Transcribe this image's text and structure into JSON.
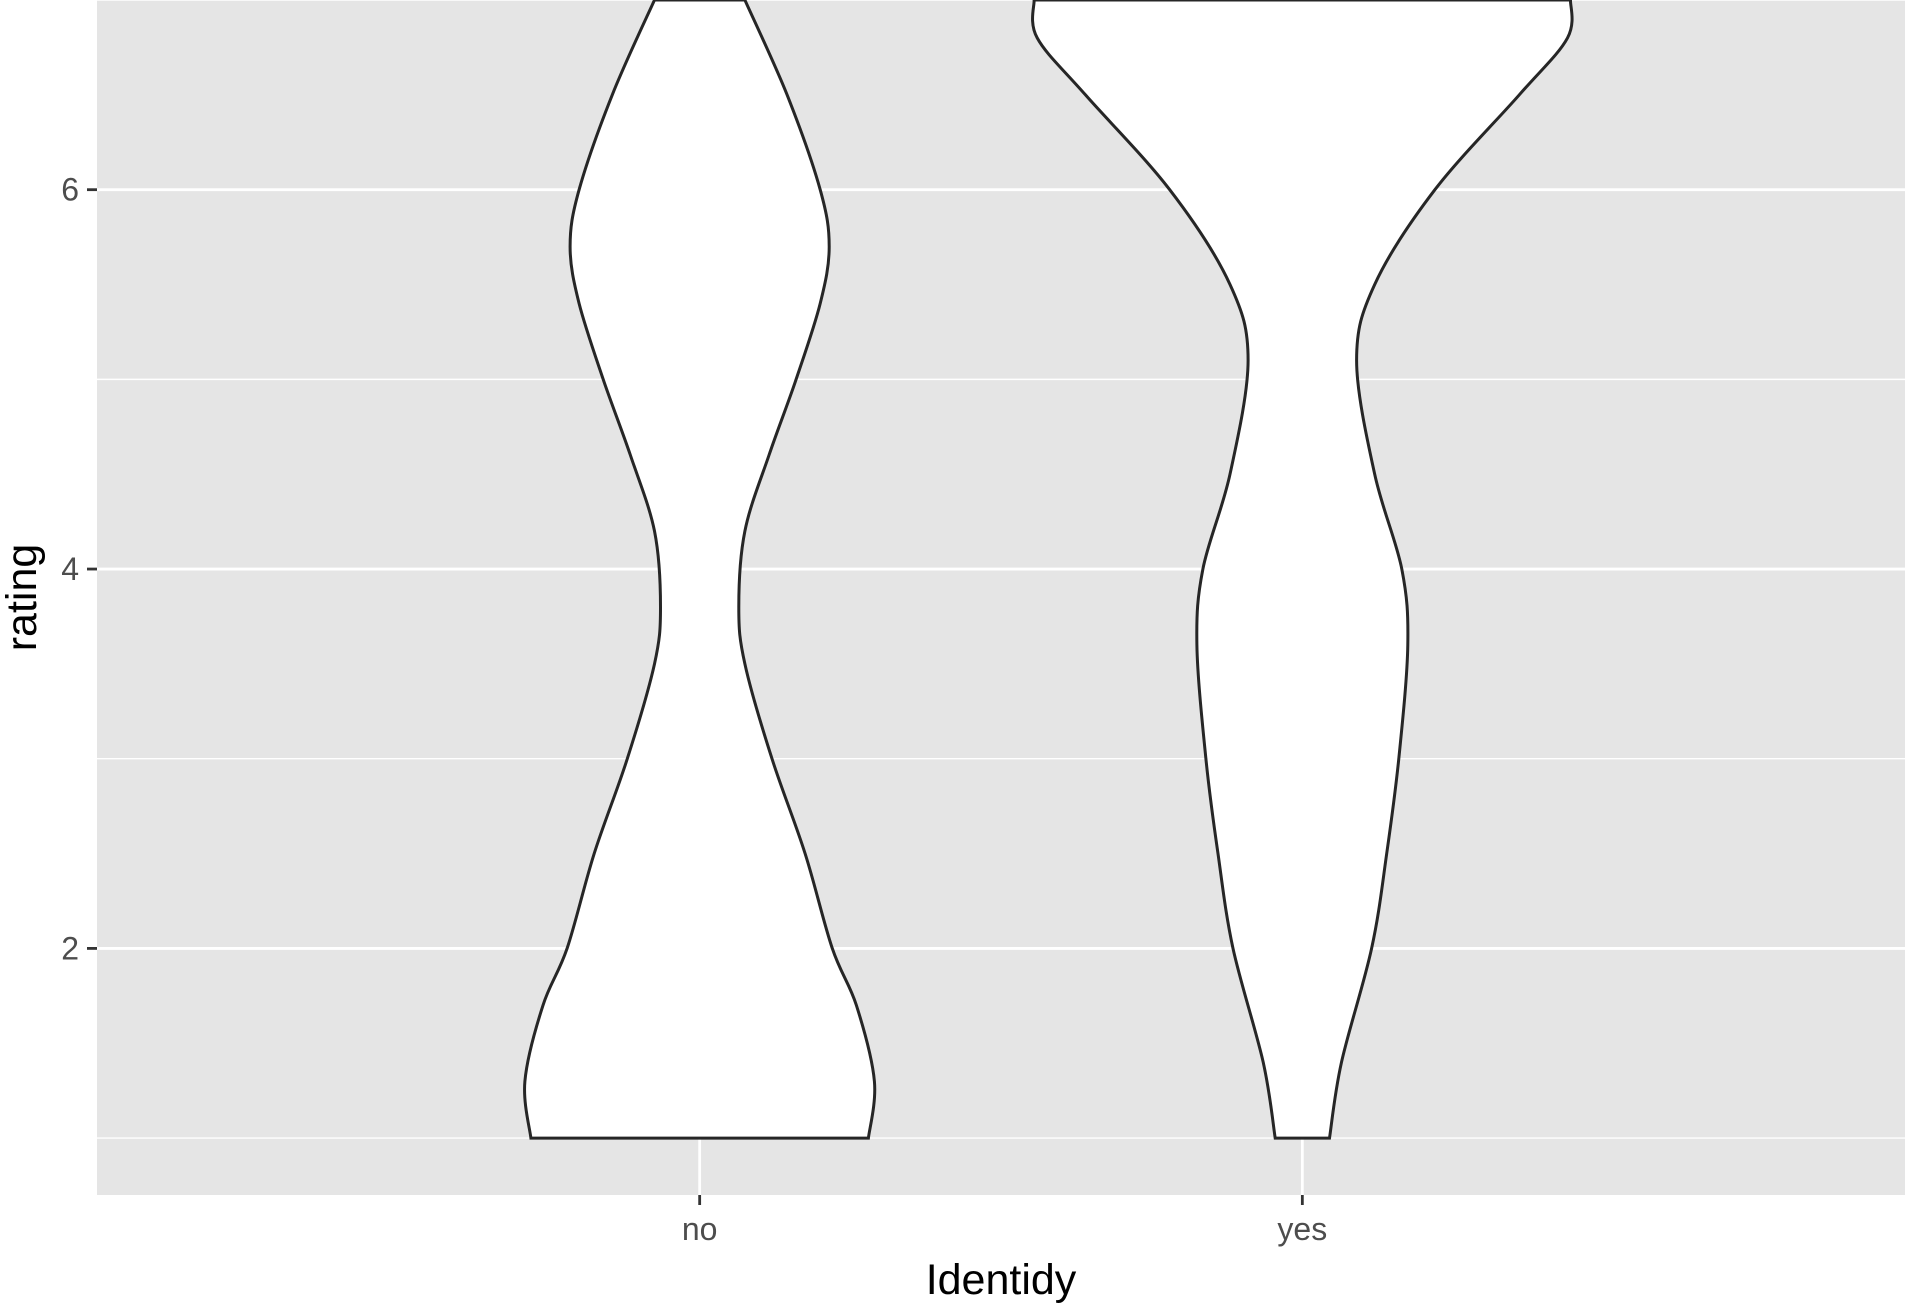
{
  "chart_data": {
    "type": "violin",
    "xlabel": "Identidy",
    "ylabel": "rating",
    "categories": [
      "no",
      "yes"
    ],
    "ylim": [
      0.7,
      7.0
    ],
    "y_ticks": [
      2,
      4,
      6
    ],
    "y_tick_labels": [
      "2",
      "4",
      "6"
    ],
    "grid": true,
    "background": "#e5e5e5",
    "violins": [
      {
        "category": "no",
        "y_range": [
          1,
          7
        ],
        "density_profile": [
          {
            "y": 1.0,
            "width": 0.56
          },
          {
            "y": 1.3,
            "width": 0.58
          },
          {
            "y": 1.7,
            "width": 0.52
          },
          {
            "y": 2.0,
            "width": 0.44
          },
          {
            "y": 2.5,
            "width": 0.35
          },
          {
            "y": 3.0,
            "width": 0.24
          },
          {
            "y": 3.5,
            "width": 0.15
          },
          {
            "y": 3.8,
            "width": 0.13
          },
          {
            "y": 4.2,
            "width": 0.15
          },
          {
            "y": 4.6,
            "width": 0.23
          },
          {
            "y": 5.0,
            "width": 0.32
          },
          {
            "y": 5.4,
            "width": 0.4
          },
          {
            "y": 5.7,
            "width": 0.43
          },
          {
            "y": 6.0,
            "width": 0.4
          },
          {
            "y": 6.5,
            "width": 0.29
          },
          {
            "y": 7.0,
            "width": 0.15
          }
        ]
      },
      {
        "category": "yes",
        "y_range": [
          1,
          7
        ],
        "density_profile": [
          {
            "y": 1.0,
            "width": 0.09
          },
          {
            "y": 1.4,
            "width": 0.13
          },
          {
            "y": 2.0,
            "width": 0.23
          },
          {
            "y": 2.5,
            "width": 0.28
          },
          {
            "y": 3.0,
            "width": 0.32
          },
          {
            "y": 3.6,
            "width": 0.35
          },
          {
            "y": 4.0,
            "width": 0.33
          },
          {
            "y": 4.5,
            "width": 0.24
          },
          {
            "y": 5.1,
            "width": 0.18
          },
          {
            "y": 5.5,
            "width": 0.24
          },
          {
            "y": 6.0,
            "width": 0.44
          },
          {
            "y": 6.5,
            "width": 0.72
          },
          {
            "y": 6.8,
            "width": 0.88
          },
          {
            "y": 7.0,
            "width": 0.89
          }
        ]
      }
    ]
  }
}
